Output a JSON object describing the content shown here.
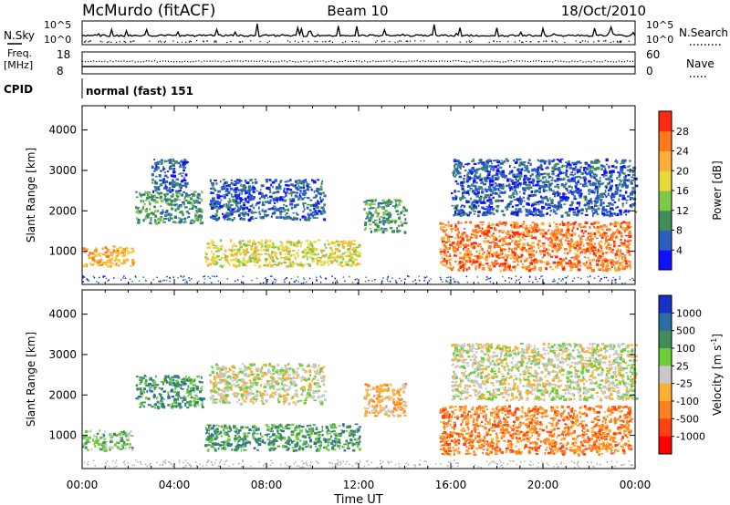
{
  "header": {
    "station": "McMurdo (fitACF)",
    "beam": "Beam 10",
    "date": "18/Oct/2010"
  },
  "params": {
    "nsky_label": "N.Sky",
    "nsky_top": "10^5",
    "nsky_bottom": "10^0",
    "nsearch_label": "N.Search",
    "nsearch_top": "10^5",
    "nsearch_bottom": "10^0",
    "freq_label": "Freq.",
    "freq_unit": "[MHz]",
    "freq_top": "18",
    "freq_bottom": "8",
    "nave_label": "Nave",
    "nave_top": "60",
    "nave_bottom": "0",
    "cpid_label": "CPID",
    "cpid_value": "normal (fast) 151"
  },
  "xaxis": {
    "label": "Time UT",
    "ticks": [
      "00:00",
      "04:00",
      "08:00",
      "12:00",
      "16:00",
      "20:00",
      "00:00"
    ]
  },
  "chart_data": [
    {
      "type": "heatmap",
      "name": "power",
      "ylabel": "Slant Range [km]",
      "x_range_hours": [
        0,
        24
      ],
      "ylim": [
        180,
        4600
      ],
      "yticks": [
        1000,
        2000,
        3000,
        4000
      ],
      "colorbar": {
        "label": "Power [dB]",
        "ticks": [
          "4",
          "8",
          "12",
          "16",
          "20",
          "24",
          "28"
        ],
        "colors": [
          "#1010ff",
          "#2a5fc0",
          "#3f8e5a",
          "#7ec84a",
          "#e8d83a",
          "#ffae3a",
          "#ff7a1a",
          "#ff2a10"
        ]
      },
      "regions": [
        {
          "t": [
            0.0,
            2.2
          ],
          "r": [
            650,
            1150
          ],
          "level": 5
        },
        {
          "t": [
            2.3,
            5.2
          ],
          "r": [
            1700,
            2500
          ],
          "level": 2
        },
        {
          "t": [
            3.0,
            4.5
          ],
          "r": [
            2500,
            3300
          ],
          "level": 1
        },
        {
          "t": [
            5.3,
            12.0
          ],
          "r": [
            650,
            1300
          ],
          "level": 4
        },
        {
          "t": [
            5.5,
            10.5
          ],
          "r": [
            1800,
            2800
          ],
          "level": 1
        },
        {
          "t": [
            12.2,
            14.0
          ],
          "r": [
            1500,
            2300
          ],
          "level": 2
        },
        {
          "t": [
            15.5,
            23.8
          ],
          "r": [
            550,
            1750
          ],
          "level": 6
        },
        {
          "t": [
            16.0,
            24.0
          ],
          "r": [
            1900,
            3300
          ],
          "level": 1
        }
      ]
    },
    {
      "type": "heatmap",
      "name": "velocity",
      "ylabel": "Slant Range [km]",
      "x_range_hours": [
        0,
        24
      ],
      "ylim": [
        180,
        4600
      ],
      "yticks": [
        1000,
        2000,
        3000,
        4000
      ],
      "colorbar": {
        "label": "Velocity [m s^-1]",
        "ticks": [
          "1000",
          "500",
          "100",
          "25",
          "-25",
          "-100",
          "-500",
          "-1000"
        ],
        "colors": [
          "#1830c8",
          "#2a6ea8",
          "#3f8e5a",
          "#6ccc3a",
          "#c8c8c8",
          "#ffb030",
          "#ff8020",
          "#ff4010",
          "#ff0000"
        ]
      },
      "regions": [
        {
          "t": [
            0.0,
            2.2
          ],
          "r": [
            650,
            1150
          ],
          "level": 3
        },
        {
          "t": [
            2.3,
            5.2
          ],
          "r": [
            1700,
            2500
          ],
          "level": 2
        },
        {
          "t": [
            5.3,
            12.0
          ],
          "r": [
            650,
            1300
          ],
          "level": 2
        },
        {
          "t": [
            5.5,
            10.5
          ],
          "r": [
            1800,
            2800
          ],
          "level": 4
        },
        {
          "t": [
            12.2,
            14.0
          ],
          "r": [
            1500,
            2300
          ],
          "level": 5
        },
        {
          "t": [
            15.5,
            23.8
          ],
          "r": [
            550,
            1750
          ],
          "level": 6
        },
        {
          "t": [
            16.0,
            24.0
          ],
          "r": [
            1900,
            3300
          ],
          "level": 4
        }
      ]
    }
  ]
}
